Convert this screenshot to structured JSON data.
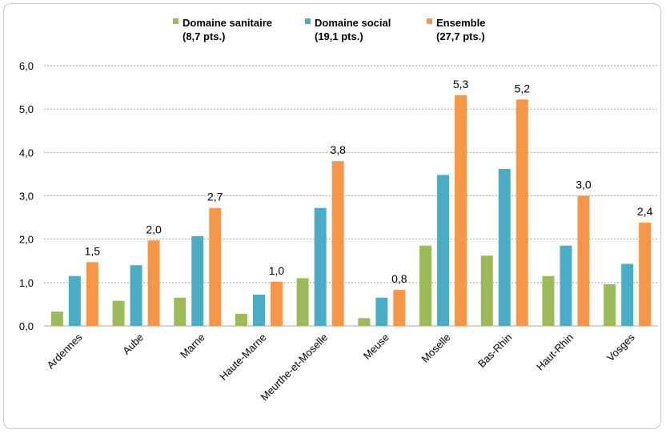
{
  "chart_data": {
    "type": "bar",
    "categories": [
      "Ardennes",
      "Aube",
      "Marne",
      "Haute-Marne",
      "Meurthe-et-Moselle",
      "Meuse",
      "Moselle",
      "Bas-Rhin",
      "Haut-Rhin",
      "Vosges"
    ],
    "series": [
      {
        "name": "Domaine sanitaire",
        "subtitle": "(8,7 pts.)",
        "color": "#9bbb59",
        "values": [
          0.33,
          0.58,
          0.65,
          0.28,
          1.1,
          0.18,
          1.85,
          1.62,
          1.15,
          0.96
        ]
      },
      {
        "name": "Domaine social",
        "subtitle": "(19,1 pts.)",
        "color": "#4bacc6",
        "values": [
          1.15,
          1.4,
          2.07,
          0.72,
          2.72,
          0.65,
          3.48,
          3.62,
          1.85,
          1.43
        ]
      },
      {
        "name": "Ensemble",
        "subtitle": "(27,7 pts.)",
        "color": "#f79646",
        "values": [
          1.47,
          1.97,
          2.72,
          1.02,
          3.8,
          0.83,
          5.32,
          5.22,
          3.0,
          2.38
        ]
      }
    ],
    "data_labels": [
      "1,5",
      "2,0",
      "2,7",
      "1,0",
      "3,8",
      "0,8",
      "5,3",
      "5,2",
      "3,0",
      "2,4"
    ],
    "yticks": [
      "0,0",
      "1,0",
      "2,0",
      "3,0",
      "4,0",
      "5,0",
      "6,0"
    ],
    "ylim": [
      0,
      6
    ],
    "xlabel": "",
    "ylabel": "",
    "title": "",
    "legend_position": "top-center",
    "grid": true,
    "gridline_color": "#a6a6a6"
  }
}
